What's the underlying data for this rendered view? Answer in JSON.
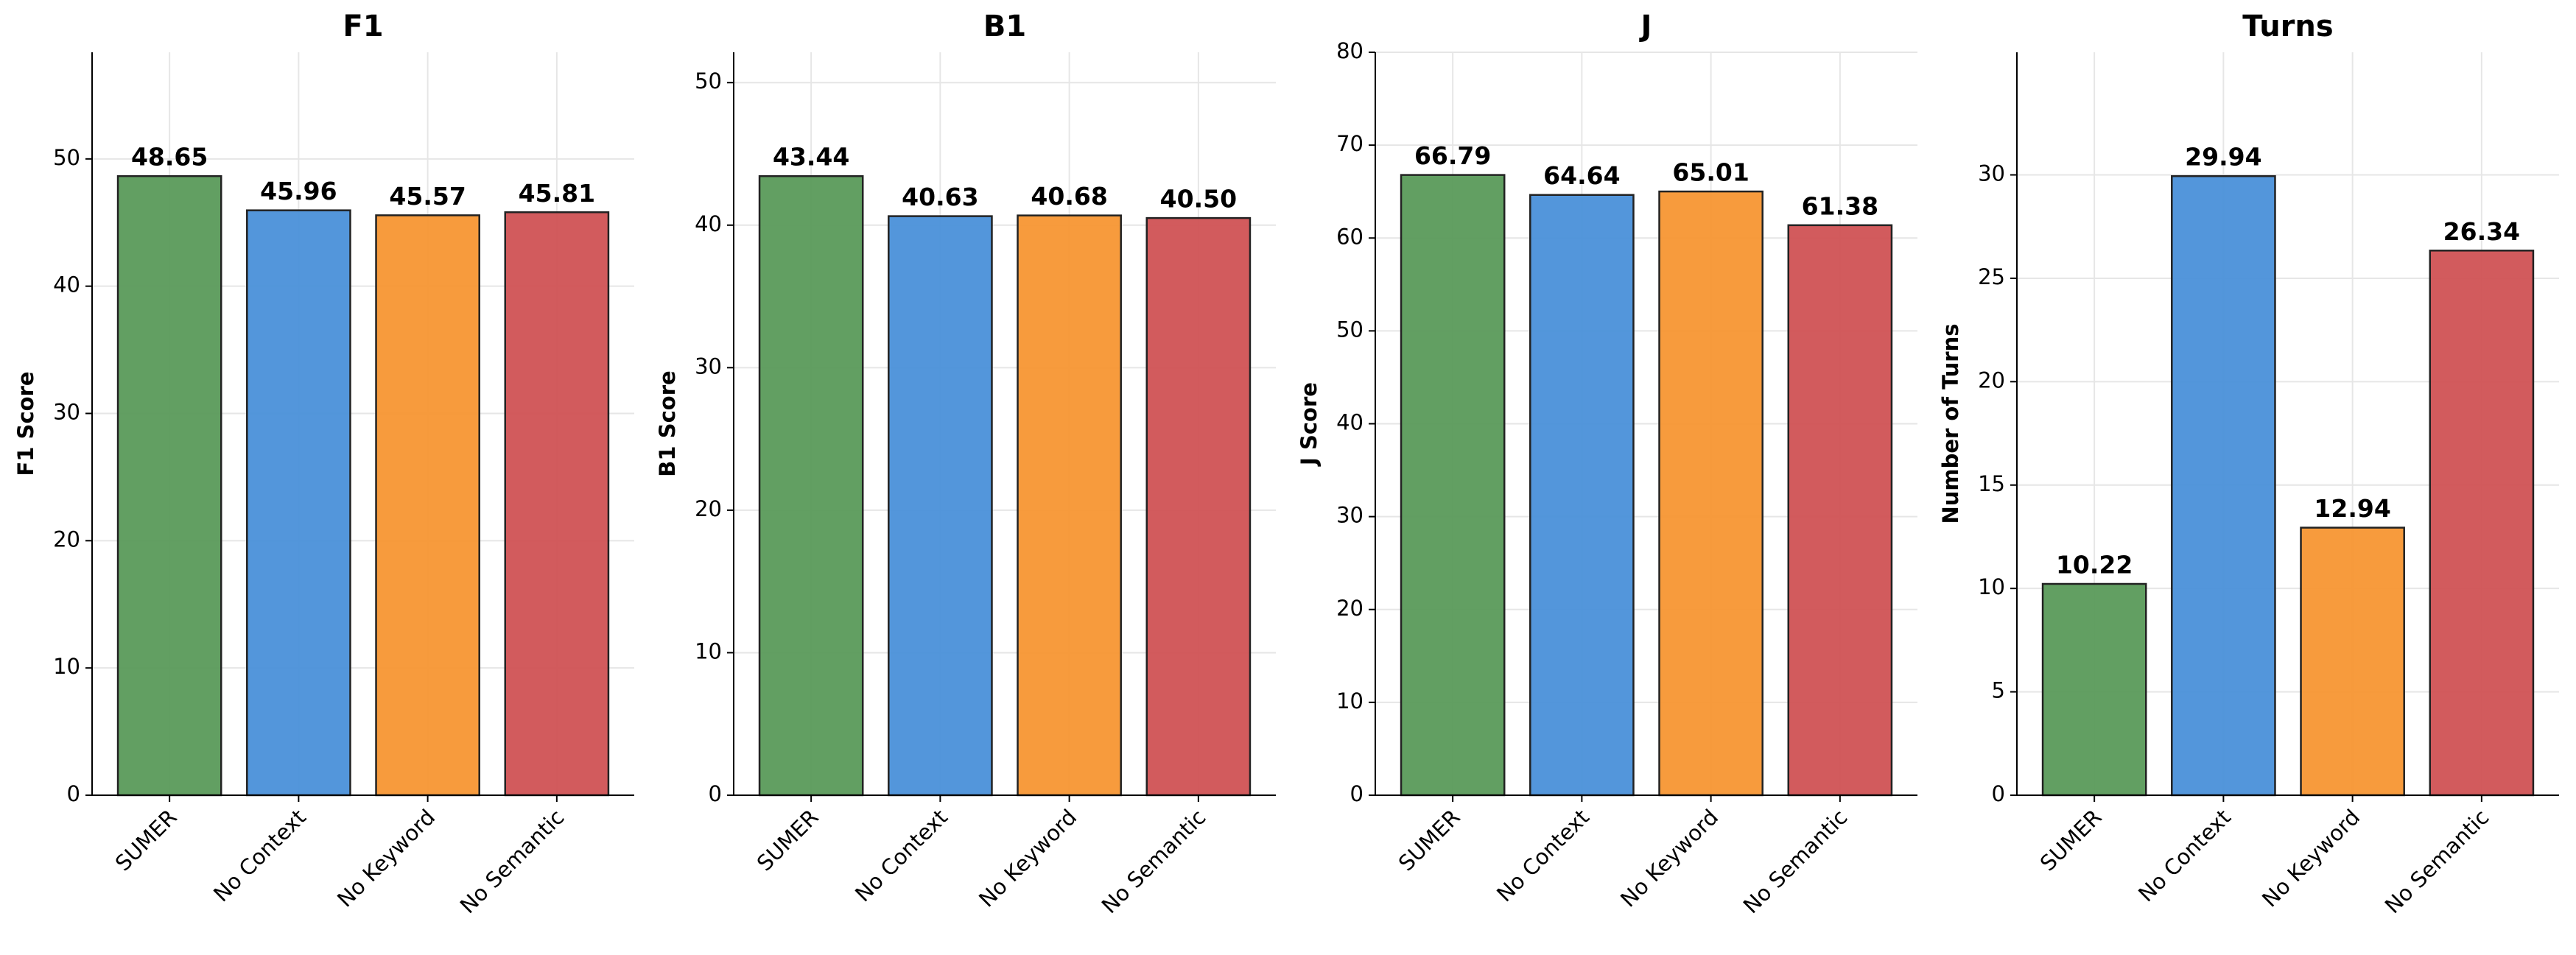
{
  "chart_data": [
    {
      "type": "bar",
      "title": "F1",
      "y_label": "F1 Score",
      "categories": [
        "SUMER",
        "No Context",
        "No Keyword",
        "No Semantic"
      ],
      "values": [
        48.65,
        45.96,
        45.57,
        45.81
      ],
      "value_labels": [
        "48.65",
        "45.96",
        "45.57",
        "45.81"
      ],
      "colors": [
        "#5a9a5a",
        "#4a90d9",
        "#f79633",
        "#d05254"
      ],
      "ylim": [
        0,
        58.38
      ],
      "yticks": [
        0,
        10,
        20,
        30,
        40,
        50
      ],
      "grid": true
    },
    {
      "type": "bar",
      "title": "B1",
      "y_label": "B1 Score",
      "categories": [
        "SUMER",
        "No Context",
        "No Keyword",
        "No Semantic"
      ],
      "values": [
        43.44,
        40.63,
        40.68,
        40.5
      ],
      "value_labels": [
        "43.44",
        "40.63",
        "40.68",
        "40.50"
      ],
      "colors": [
        "#5a9a5a",
        "#4a90d9",
        "#f79633",
        "#d05254"
      ],
      "ylim": [
        0,
        52.13
      ],
      "yticks": [
        0,
        10,
        20,
        30,
        40,
        50
      ],
      "grid": true
    },
    {
      "type": "bar",
      "title": "J",
      "y_label": "J Score",
      "categories": [
        "SUMER",
        "No Context",
        "No Keyword",
        "No Semantic"
      ],
      "values": [
        66.79,
        64.64,
        65.01,
        61.38
      ],
      "value_labels": [
        "66.79",
        "64.64",
        "65.01",
        "61.38"
      ],
      "colors": [
        "#5a9a5a",
        "#4a90d9",
        "#f79633",
        "#d05254"
      ],
      "ylim": [
        0,
        80
      ],
      "yticks": [
        0,
        10,
        20,
        30,
        40,
        50,
        60,
        70,
        80
      ],
      "grid": true
    },
    {
      "type": "bar",
      "title": "Turns",
      "y_label": "Number of Turns",
      "categories": [
        "SUMER",
        "No Context",
        "No Keyword",
        "No Semantic"
      ],
      "values": [
        10.22,
        29.94,
        12.94,
        26.34
      ],
      "value_labels": [
        "10.22",
        "29.94",
        "12.94",
        "26.34"
      ],
      "colors": [
        "#5a9a5a",
        "#4a90d9",
        "#f79633",
        "#d05254"
      ],
      "ylim": [
        0,
        35.93
      ],
      "yticks": [
        0,
        5,
        10,
        15,
        20,
        25,
        30
      ],
      "grid": true
    }
  ]
}
